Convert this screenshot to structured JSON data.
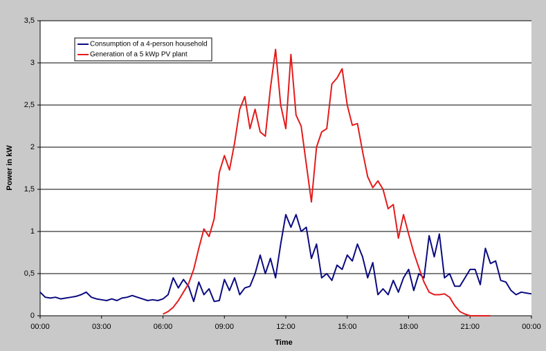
{
  "chart_data": {
    "type": "line",
    "xlabel": "Time",
    "ylabel": "Power in kW",
    "x": [
      0,
      0.25,
      0.5,
      0.75,
      1,
      1.25,
      1.5,
      1.75,
      2,
      2.25,
      2.5,
      2.75,
      3,
      3.25,
      3.5,
      3.75,
      4,
      4.25,
      4.5,
      4.75,
      5,
      5.25,
      5.5,
      5.75,
      6,
      6.25,
      6.5,
      6.75,
      7,
      7.25,
      7.5,
      7.75,
      8,
      8.25,
      8.5,
      8.75,
      9,
      9.25,
      9.5,
      9.75,
      10,
      10.25,
      10.5,
      10.75,
      11,
      11.25,
      11.5,
      11.75,
      12,
      12.25,
      12.5,
      12.75,
      13,
      13.25,
      13.5,
      13.75,
      14,
      14.25,
      14.5,
      14.75,
      15,
      15.25,
      15.5,
      15.75,
      16,
      16.25,
      16.5,
      16.75,
      17,
      17.25,
      17.5,
      17.75,
      18,
      18.25,
      18.5,
      18.75,
      19,
      19.25,
      19.5,
      19.75,
      20,
      20.25,
      20.5,
      20.75,
      21,
      21.25,
      21.5,
      21.75,
      22,
      22.25,
      22.5,
      22.75,
      23,
      23.25,
      23.5,
      23.75,
      24
    ],
    "series": [
      {
        "name": "Consumption of a 4-person household",
        "color": "#0a0a80",
        "values": [
          0.28,
          0.22,
          0.21,
          0.22,
          0.2,
          0.21,
          0.22,
          0.23,
          0.25,
          0.28,
          0.22,
          0.2,
          0.19,
          0.18,
          0.2,
          0.18,
          0.21,
          0.22,
          0.24,
          0.22,
          0.2,
          0.18,
          0.19,
          0.18,
          0.2,
          0.25,
          0.45,
          0.33,
          0.43,
          0.35,
          0.17,
          0.4,
          0.25,
          0.32,
          0.17,
          0.18,
          0.43,
          0.3,
          0.45,
          0.25,
          0.33,
          0.35,
          0.5,
          0.72,
          0.5,
          0.68,
          0.45,
          0.85,
          1.2,
          1.05,
          1.2,
          1.0,
          1.05,
          0.68,
          0.85,
          0.45,
          0.5,
          0.42,
          0.6,
          0.55,
          0.72,
          0.65,
          0.85,
          0.7,
          0.45,
          0.63,
          0.25,
          0.32,
          0.25,
          0.42,
          0.28,
          0.45,
          0.55,
          0.3,
          0.5,
          0.45,
          0.95,
          0.7,
          0.97,
          0.45,
          0.5,
          0.35,
          0.35,
          0.45,
          0.55,
          0.55,
          0.37,
          0.8,
          0.62,
          0.65,
          0.42,
          0.4,
          0.3,
          0.25,
          0.28,
          0.27,
          0.26
        ]
      },
      {
        "name": "Generation of a 5 kWp PV plant",
        "color": "#e41a1a",
        "values": [
          null,
          null,
          null,
          null,
          null,
          null,
          null,
          null,
          null,
          null,
          null,
          null,
          null,
          null,
          null,
          null,
          null,
          null,
          null,
          null,
          null,
          null,
          null,
          null,
          0.02,
          0.05,
          0.1,
          0.18,
          0.28,
          0.38,
          0.55,
          0.8,
          1.03,
          0.94,
          1.15,
          1.7,
          1.9,
          1.73,
          2.05,
          2.45,
          2.6,
          2.22,
          2.45,
          2.18,
          2.13,
          2.7,
          3.16,
          2.5,
          2.22,
          3.1,
          2.38,
          2.25,
          1.8,
          1.35,
          2.0,
          2.18,
          2.22,
          2.75,
          2.82,
          2.93,
          2.5,
          2.26,
          2.28,
          1.95,
          1.65,
          1.52,
          1.6,
          1.5,
          1.27,
          1.32,
          0.92,
          1.2,
          0.97,
          0.75,
          0.57,
          0.4,
          0.28,
          0.25,
          0.25,
          0.26,
          0.22,
          0.12,
          0.05,
          0.02,
          0,
          0,
          0,
          0,
          0,
          null,
          null,
          null,
          null,
          null,
          null,
          null,
          null
        ]
      }
    ],
    "xlim": [
      0,
      24
    ],
    "xticks": [
      {
        "value": 0,
        "label": "00:00"
      },
      {
        "value": 3,
        "label": "03:00"
      },
      {
        "value": 6,
        "label": "06:00"
      },
      {
        "value": 9,
        "label": "09:00"
      },
      {
        "value": 12,
        "label": "12:00"
      },
      {
        "value": 15,
        "label": "15:00"
      },
      {
        "value": 18,
        "label": "18:00"
      },
      {
        "value": 21,
        "label": "21:00"
      },
      {
        "value": 24,
        "label": "00:00"
      }
    ],
    "ylim": [
      0,
      3.5
    ],
    "yticks": [
      0,
      {
        "value": 0.5,
        "label": "0,5"
      },
      1,
      {
        "value": 1.5,
        "label": "1,5"
      },
      2,
      {
        "value": 2.5,
        "label": "2,5"
      },
      3,
      {
        "value": 3.5,
        "label": "3,5"
      }
    ],
    "grid": true,
    "legend": "upper left"
  }
}
